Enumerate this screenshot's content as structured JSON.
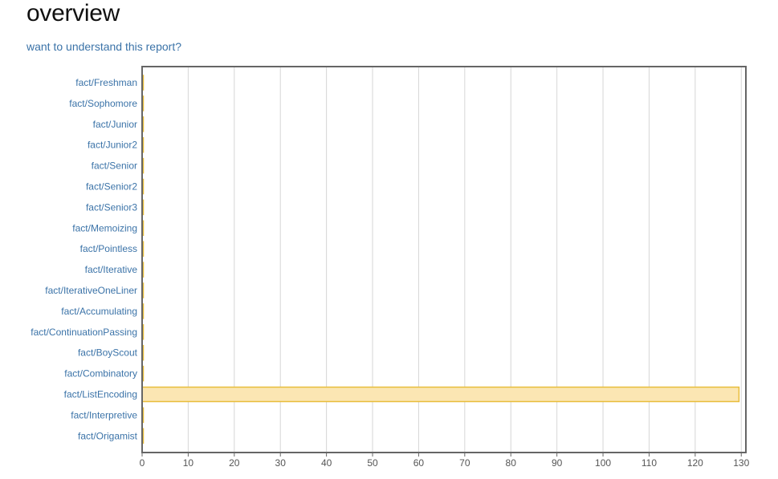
{
  "header": {
    "title": "overview",
    "help_link": "want to understand this report?"
  },
  "chart_data": {
    "type": "bar",
    "orientation": "horizontal",
    "categories": [
      "fact/Freshman",
      "fact/Sophomore",
      "fact/Junior",
      "fact/Junior2",
      "fact/Senior",
      "fact/Senior2",
      "fact/Senior3",
      "fact/Memoizing",
      "fact/Pointless",
      "fact/Iterative",
      "fact/IterativeOneLiner",
      "fact/Accumulating",
      "fact/ContinuationPassing",
      "fact/BoyScout",
      "fact/Combinatory",
      "fact/ListEncoding",
      "fact/Interpretive",
      "fact/Origamist"
    ],
    "values": [
      0.2,
      0.2,
      0.2,
      0.2,
      0.2,
      0.2,
      0.2,
      0.2,
      0.2,
      0.2,
      0.2,
      0.2,
      0.2,
      0.2,
      0.2,
      129.5,
      0.2,
      0.2
    ],
    "xlim": [
      0,
      131
    ],
    "xticks": [
      0,
      10,
      20,
      30,
      40,
      50,
      60,
      70,
      80,
      90,
      100,
      110,
      120,
      130
    ],
    "grid": true,
    "bar_fill": "#fbe6b3",
    "bar_stroke": "#e8bd3b",
    "label_color": "#3b73a8"
  }
}
